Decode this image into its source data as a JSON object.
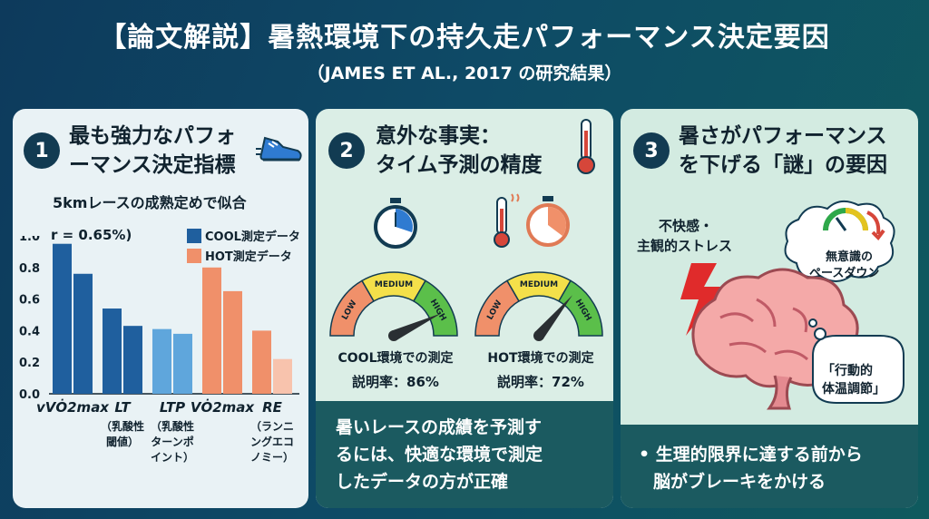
{
  "header": {
    "title": "【論文解説】暑熱環境下の持久走パフォーマンス決定要因",
    "subtitle": "（JAMES ET AL., 2017 の研究結果）"
  },
  "panel1": {
    "number": "1",
    "heading_line1": "最も強力なパフォ",
    "heading_line2": "ーマンス決定指標",
    "icon": "running-shoe-icon",
    "chart_title": "5kmレースの成熟定めで似合",
    "r_note": "r = 0.65%)",
    "legend_cool": "COOL測定データ",
    "legend_hot": "HOT測定データ"
  },
  "chart_data": {
    "type": "bar",
    "title": "5kmレースの成熟定めで似合",
    "ylim": [
      0,
      1.0
    ],
    "yticks": [
      "0.0",
      "0.2",
      "0.4",
      "0.6",
      "0.8",
      "1.0"
    ],
    "colors": {
      "cool_dark": "#1f5f9e",
      "cool_light": "#5fa6dc",
      "hot_dark": "#f0906a",
      "hot_light": "#f8c3ad"
    },
    "groups": [
      {
        "label": "vVȮ2max",
        "sublabel": "",
        "bars": [
          0.95,
          0.76
        ],
        "shade": [
          "cool_dark",
          "cool_dark"
        ]
      },
      {
        "label": "LT",
        "sublabel": "（乳酸性閾値）",
        "bars": [
          0.54,
          0.43
        ],
        "shade": [
          "cool_dark",
          "cool_dark"
        ]
      },
      {
        "label": "LTP",
        "sublabel": "（乳酸性ターンポイント）",
        "bars": [
          0.41,
          0.38
        ],
        "shade": [
          "cool_light",
          "cool_light"
        ]
      },
      {
        "label": "VȮ2max",
        "sublabel": "",
        "bars": [
          0.8,
          0.65
        ],
        "shade": [
          "hot_dark",
          "hot_dark"
        ]
      },
      {
        "label": "RE",
        "sublabel": "（ランニングエコノミー）",
        "bars": [
          0.4,
          0.22
        ],
        "shade": [
          "hot_dark",
          "hot_light"
        ]
      }
    ],
    "legend": [
      {
        "name": "COOL測定データ",
        "color": "#1f5f9e"
      },
      {
        "name": "HOT測定データ",
        "color": "#f0906a"
      }
    ]
  },
  "panel2": {
    "number": "2",
    "heading_line1": "意外な事実：",
    "heading_line2": "タイム予測の精度",
    "gauge_low": "LOW",
    "gauge_medium": "MEDIUM",
    "gauge_high": "HIGH",
    "cool_label": "COOL環境での測定",
    "cool_value": "説明率：86%",
    "cool_fraction": 0.86,
    "hot_label": "HOT環境での測定",
    "hot_value": "説明率：72%",
    "hot_fraction": 0.72,
    "footer_line1": "暑いレースの成績を予測す",
    "footer_line2": "るには、快適な環境で測定",
    "footer_line3": "したデータの方が正確"
  },
  "panel3": {
    "number": "3",
    "heading_line1": "暑さがパフォーマンス",
    "heading_line2": "を下げる「謎」の要因",
    "stress_line1": "不快感・",
    "stress_line2": "主観的ストレス",
    "bubble1_line1": "無意識の",
    "bubble1_line2": "ペースダウン",
    "bubble2_line1": "「行動的",
    "bubble2_line2": "体温調節」",
    "footer_line1": "• 生理的限界に達する前から",
    "footer_line2": "脳がブレーキをかける"
  }
}
